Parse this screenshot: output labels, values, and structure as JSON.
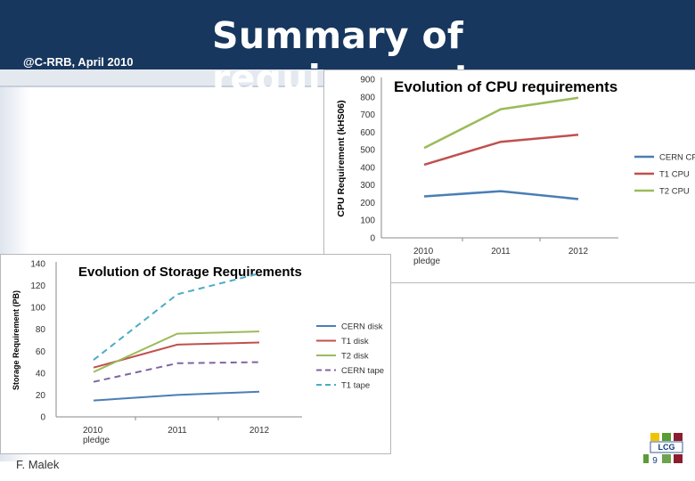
{
  "slide": {
    "title": "Summary of requirements",
    "tag": "@C-RRB, April 2010",
    "author": "F. Malek",
    "page_number": "9",
    "logo_text": "LCG"
  },
  "chart_data": [
    {
      "type": "line",
      "title": "Evolution of CPU requirements",
      "ylabel": "CPU Requirement (kHS06)",
      "xlabel": "",
      "categories": [
        "2010 pledge",
        "2011",
        "2012"
      ],
      "category_lines": [
        [
          "2010",
          "pledge"
        ],
        [
          "2011"
        ],
        [
          "2012"
        ]
      ],
      "ylim": [
        0,
        900
      ],
      "yticks": [
        0,
        100,
        200,
        300,
        400,
        500,
        600,
        700,
        800,
        900
      ],
      "legend": "right",
      "series": [
        {
          "name": "CERN CPU",
          "color": "#4a7eb5",
          "dash": false,
          "values": [
            235,
            265,
            220
          ]
        },
        {
          "name": "T1 CPU",
          "color": "#c0504d",
          "dash": false,
          "values": [
            415,
            545,
            585
          ]
        },
        {
          "name": "T2 CPU",
          "color": "#9bbb59",
          "dash": false,
          "values": [
            510,
            730,
            795
          ]
        }
      ]
    },
    {
      "type": "line",
      "title": "Evolution of Storage Requirements",
      "ylabel": "Storage Requirement (PB)",
      "xlabel": "",
      "categories": [
        "2010 pledge",
        "2011",
        "2012"
      ],
      "category_lines": [
        [
          "2010",
          "pledge"
        ],
        [
          "2011"
        ],
        [
          "2012"
        ]
      ],
      "ylim": [
        0,
        140
      ],
      "yticks": [
        0,
        20,
        40,
        60,
        80,
        100,
        120,
        140
      ],
      "legend": "right",
      "series": [
        {
          "name": "CERN disk",
          "color": "#4a7eb5",
          "dash": false,
          "values": [
            15,
            20,
            23
          ]
        },
        {
          "name": "T1 disk",
          "color": "#c0504d",
          "dash": false,
          "values": [
            45,
            66,
            68
          ]
        },
        {
          "name": "T2 disk",
          "color": "#9bbb59",
          "dash": false,
          "values": [
            41,
            76,
            78
          ]
        },
        {
          "name": "CERN tape",
          "color": "#8064a2",
          "dash": true,
          "values": [
            32,
            49,
            50
          ]
        },
        {
          "name": "T1 tape",
          "color": "#4bacc6",
          "dash": true,
          "values": [
            52,
            112,
            131
          ]
        }
      ]
    }
  ]
}
